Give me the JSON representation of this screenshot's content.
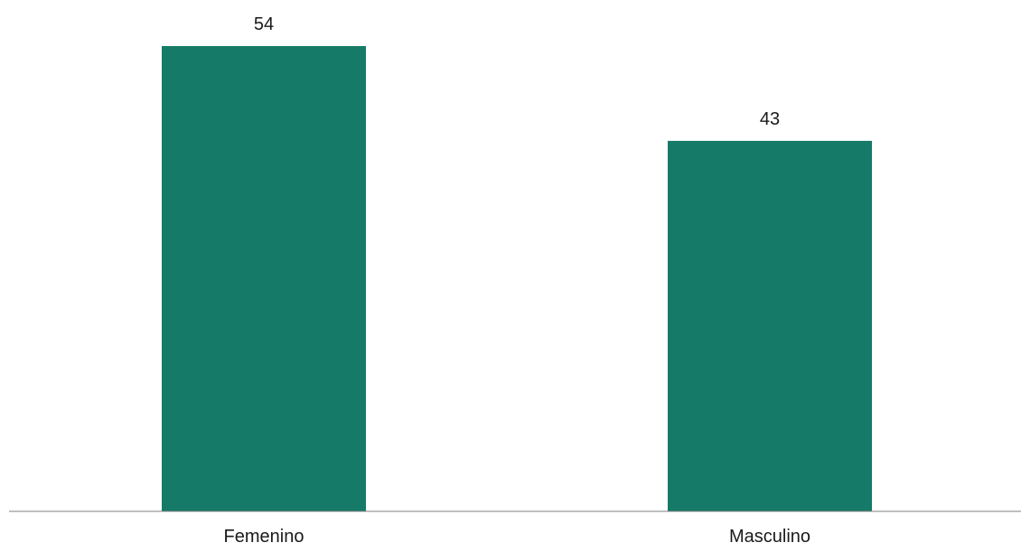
{
  "chart_data": {
    "type": "bar",
    "categories": [
      "Femenino",
      "Masculino"
    ],
    "values": [
      54,
      43
    ],
    "bar_color": "#167a68",
    "ylim": [
      0,
      54
    ],
    "grid": false,
    "legend": "none",
    "title": "",
    "xlabel": "",
    "ylabel": ""
  }
}
